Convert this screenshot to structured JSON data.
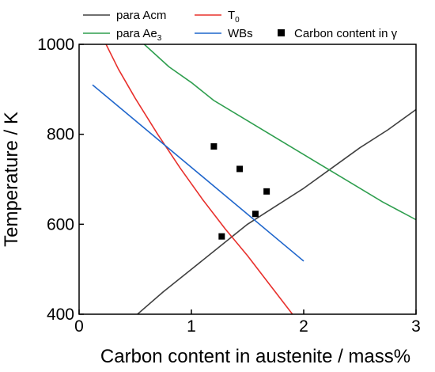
{
  "chart_data": {
    "type": "line",
    "xlabel": "Carbon content in austenite / mass%",
    "ylabel": "Temperature / K",
    "xlim": [
      0,
      3
    ],
    "ylim": [
      400,
      1000
    ],
    "x_ticks": [
      "0",
      "1",
      "2",
      "3"
    ],
    "y_ticks": [
      "400",
      "600",
      "800",
      "1000"
    ],
    "legend_position": "top, outside plot area",
    "grid": false,
    "series": [
      {
        "name": "para Acm",
        "name_main": "para Acm",
        "name_sub": "",
        "kind": "line",
        "color": "#404040",
        "points": [
          [
            0.52,
            400
          ],
          [
            0.75,
            450
          ],
          [
            1.0,
            500
          ],
          [
            1.25,
            550
          ],
          [
            1.5,
            600
          ],
          [
            1.75,
            640
          ],
          [
            2.0,
            680
          ],
          [
            2.25,
            725
          ],
          [
            2.5,
            770
          ],
          [
            2.75,
            810
          ],
          [
            3.0,
            855
          ]
        ]
      },
      {
        "name": "T0",
        "name_main": "T",
        "name_sub": "0",
        "kind": "line",
        "color": "#e8302c",
        "points": [
          [
            0.24,
            1000
          ],
          [
            0.35,
            945
          ],
          [
            0.5,
            880
          ],
          [
            0.7,
            800
          ],
          [
            0.9,
            725
          ],
          [
            1.1,
            655
          ],
          [
            1.3,
            590
          ],
          [
            1.5,
            530
          ],
          [
            1.7,
            465
          ],
          [
            1.9,
            400
          ]
        ]
      },
      {
        "name": "para Ae3",
        "name_main": "para Ae",
        "name_sub": "3",
        "kind": "line",
        "color": "#2e9e4e",
        "points": [
          [
            0.58,
            1000
          ],
          [
            0.8,
            950
          ],
          [
            1.0,
            915
          ],
          [
            1.2,
            875
          ],
          [
            1.5,
            830
          ],
          [
            1.8,
            785
          ],
          [
            2.1,
            740
          ],
          [
            2.4,
            695
          ],
          [
            2.7,
            650
          ],
          [
            3.0,
            610
          ]
        ]
      },
      {
        "name": "WBs",
        "name_main": "WBs",
        "name_sub": "",
        "kind": "line",
        "color": "#1f66cc",
        "points": [
          [
            0.12,
            910
          ],
          [
            2.0,
            518
          ]
        ]
      },
      {
        "name": "Carbon content in γ",
        "name_main": "Carbon content in γ",
        "name_sub": "",
        "kind": "scatter",
        "color": "#000000",
        "points": [
          [
            1.2,
            773
          ],
          [
            1.43,
            723
          ],
          [
            1.67,
            673
          ],
          [
            1.57,
            623
          ],
          [
            1.27,
            573
          ]
        ]
      }
    ]
  }
}
